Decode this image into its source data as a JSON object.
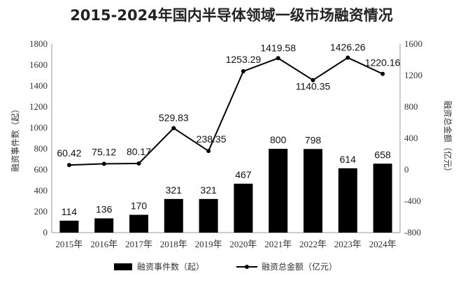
{
  "chart_data": {
    "type": "bar",
    "title": "2015-2024年国内半导体领域一级市场融资情况",
    "categories": [
      "2015年",
      "2016年",
      "2017年",
      "2018年",
      "2019年",
      "2020年",
      "2021年",
      "2022年",
      "2023年",
      "2024年"
    ],
    "series": [
      {
        "name": "融资事件数（起）",
        "type": "bar",
        "axis": "left",
        "values": [
          114,
          136,
          170,
          321,
          321,
          467,
          800,
          798,
          614,
          658
        ],
        "color": "#000000"
      },
      {
        "name": "融资总金额（亿元）",
        "type": "line",
        "axis": "right",
        "values": [
          60.42,
          75.12,
          80.17,
          529.83,
          238.35,
          1253.29,
          1419.58,
          1140.35,
          1426.26,
          1220.16
        ],
        "color": "#000000"
      }
    ],
    "ylabel": "融资事件数（起）",
    "y2label": "融资总金额（亿元）",
    "ylim": [
      0,
      1800
    ],
    "y2lim": [
      -800,
      1600
    ],
    "yticks": [
      "0",
      "200",
      "400",
      "600",
      "800",
      "1000",
      "1200",
      "1400",
      "1600",
      "1800"
    ],
    "y2ticks": [
      "-800",
      "-400",
      "0",
      "400",
      "800",
      "1200",
      "1600"
    ],
    "grid": false,
    "legend": "bottom"
  }
}
